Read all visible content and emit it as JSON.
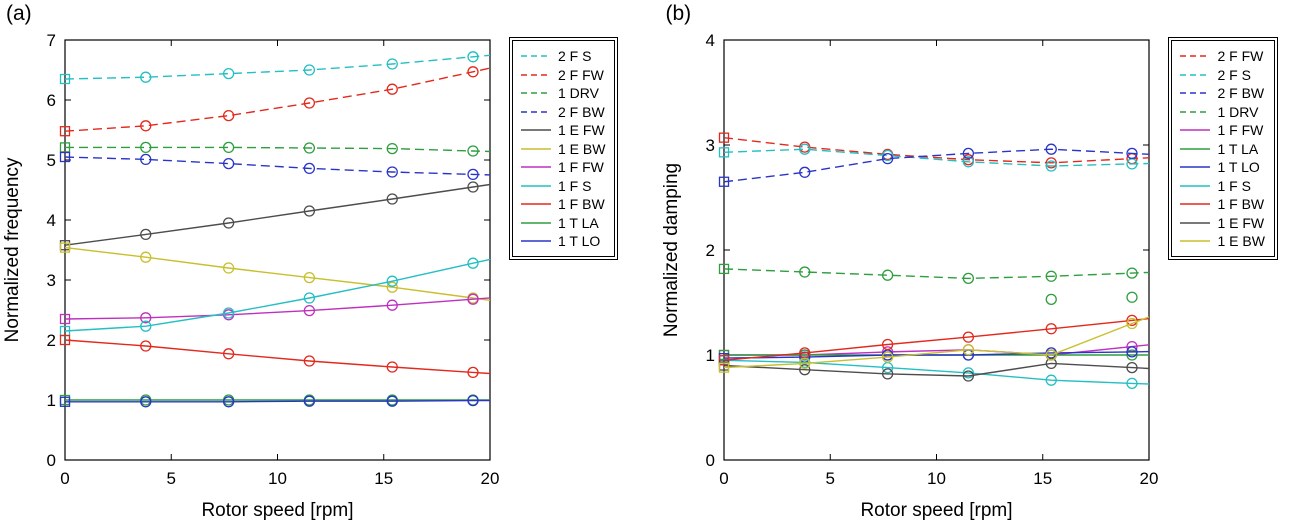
{
  "figure": {
    "panel_a_label": "(a)",
    "panel_b_label": "(b)"
  },
  "colors": {
    "cyan": "#24bfc4",
    "red": "#e3291d",
    "green": "#2e9e3f",
    "blue": "#2a35c8",
    "gray": "#4d4d4d",
    "yellow": "#c9bf2c",
    "magenta": "#bf30bf"
  },
  "chart_data": [
    {
      "type": "line",
      "panel_label": "(a)",
      "xlabel": "Rotor speed [rpm]",
      "ylabel": "Normalized frequency",
      "xlim": [
        0,
        20
      ],
      "ylim": [
        0,
        7
      ],
      "xticks": [
        0,
        5,
        10,
        15,
        20
      ],
      "yticks": [
        0,
        1,
        2,
        3,
        4,
        5,
        6,
        7
      ],
      "grid": false,
      "legend_position": "outside-right",
      "x": [
        0,
        3.8,
        7.7,
        11.5,
        15.4,
        19.2
      ],
      "series": [
        {
          "name": "2 F S",
          "color": "cyan",
          "dashed": true,
          "values": [
            6.35,
            6.38,
            6.44,
            6.5,
            6.6,
            6.72
          ]
        },
        {
          "name": "2 F FW",
          "color": "red",
          "dashed": true,
          "values": [
            5.48,
            5.57,
            5.74,
            5.95,
            6.18,
            6.47
          ]
        },
        {
          "name": "1 DRV",
          "color": "green",
          "dashed": true,
          "values": [
            5.21,
            5.21,
            5.21,
            5.2,
            5.19,
            5.15
          ]
        },
        {
          "name": "2 F BW",
          "color": "blue",
          "dashed": true,
          "values": [
            5.05,
            5.01,
            4.94,
            4.86,
            4.8,
            4.76
          ]
        },
        {
          "name": "1 E FW",
          "color": "gray",
          "dashed": false,
          "values": [
            3.58,
            3.76,
            3.95,
            4.15,
            4.35,
            4.55
          ]
        },
        {
          "name": "1 E BW",
          "color": "yellow",
          "dashed": false,
          "values": [
            3.54,
            3.38,
            3.2,
            3.04,
            2.88,
            2.7
          ]
        },
        {
          "name": "1 F FW",
          "color": "magenta",
          "dashed": false,
          "values": [
            2.35,
            2.37,
            2.42,
            2.49,
            2.58,
            2.68
          ]
        },
        {
          "name": "1 F S",
          "color": "cyan",
          "dashed": false,
          "values": [
            2.15,
            2.23,
            2.45,
            2.7,
            2.98,
            3.28
          ]
        },
        {
          "name": "1 F BW",
          "color": "red",
          "dashed": false,
          "values": [
            2.0,
            1.9,
            1.77,
            1.65,
            1.55,
            1.46
          ]
        },
        {
          "name": "1 T LA",
          "color": "green",
          "dashed": false,
          "values": [
            1.0,
            1.0,
            1.0,
            1.0,
            1.0,
            1.0
          ]
        },
        {
          "name": "1 T LO",
          "color": "blue",
          "dashed": false,
          "values": [
            0.97,
            0.97,
            0.97,
            0.98,
            0.98,
            0.99
          ]
        }
      ],
      "extra_markers": []
    },
    {
      "type": "line",
      "panel_label": "(b)",
      "xlabel": "Rotor speed [rpm]",
      "ylabel": "Normalized damping",
      "xlim": [
        0,
        20
      ],
      "ylim": [
        0,
        4
      ],
      "xticks": [
        0,
        5,
        10,
        15,
        20
      ],
      "yticks": [
        0,
        1,
        2,
        3,
        4
      ],
      "grid": false,
      "legend_position": "outside-right",
      "x": [
        0,
        3.8,
        7.7,
        11.5,
        15.4,
        19.2
      ],
      "series": [
        {
          "name": "2 F FW",
          "color": "red",
          "dashed": true,
          "values": [
            3.07,
            2.98,
            2.91,
            2.86,
            2.83,
            2.87
          ]
        },
        {
          "name": "2 F S",
          "color": "cyan",
          "dashed": true,
          "values": [
            2.93,
            2.96,
            2.9,
            2.84,
            2.8,
            2.82
          ]
        },
        {
          "name": "2 F BW",
          "color": "blue",
          "dashed": true,
          "values": [
            2.65,
            2.74,
            2.87,
            2.92,
            2.96,
            2.92
          ]
        },
        {
          "name": "1 DRV",
          "color": "green",
          "dashed": true,
          "values": [
            1.82,
            1.79,
            1.76,
            1.73,
            1.75,
            1.78
          ]
        },
        {
          "name": "1 F FW",
          "color": "magenta",
          "dashed": false,
          "values": [
            1.0,
            1.0,
            1.03,
            1.05,
            1.0,
            1.08
          ]
        },
        {
          "name": "1 T LA",
          "color": "green",
          "dashed": false,
          "values": [
            1.0,
            1.0,
            1.0,
            1.0,
            1.0,
            1.0
          ]
        },
        {
          "name": "1 T LO",
          "color": "blue",
          "dashed": false,
          "values": [
            0.97,
            0.98,
            1.0,
            1.0,
            1.02,
            1.03
          ]
        },
        {
          "name": "1 F S",
          "color": "cyan",
          "dashed": false,
          "values": [
            0.95,
            0.93,
            0.88,
            0.83,
            0.76,
            0.73
          ]
        },
        {
          "name": "1 F BW",
          "color": "red",
          "dashed": false,
          "values": [
            0.95,
            1.02,
            1.1,
            1.17,
            1.25,
            1.33
          ]
        },
        {
          "name": "1 E FW",
          "color": "gray",
          "dashed": false,
          "values": [
            0.9,
            0.86,
            0.82,
            0.8,
            0.92,
            0.88
          ]
        },
        {
          "name": "1 E BW",
          "color": "yellow",
          "dashed": false,
          "values": [
            0.88,
            0.92,
            0.98,
            1.05,
            1.0,
            1.3
          ]
        }
      ],
      "extra_markers": [
        {
          "x": 15.4,
          "y": 1.53,
          "color": "green"
        },
        {
          "x": 19.2,
          "y": 1.55,
          "color": "green"
        }
      ]
    }
  ]
}
